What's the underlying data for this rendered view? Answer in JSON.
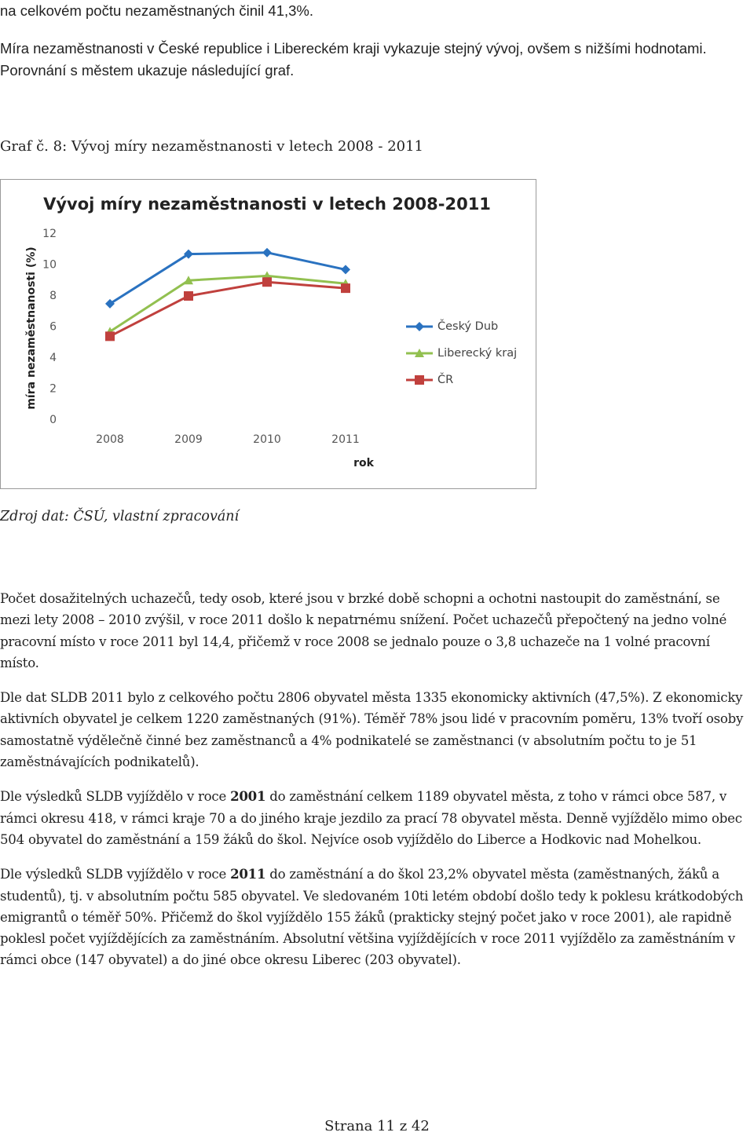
{
  "text_top": {
    "p1": "na celkovém počtu nezaměstnaných činil 41,3%.",
    "p2": "Míra nezaměstnanosti v České republice i Libereckém kraji vykazuje stejný vývoj, ovšem s nižšími hodnotami. Porovnání s městem ukazuje následující graf."
  },
  "figure_caption": "Graf č. 8: Vývoj míry nezaměstnanosti v letech 2008 - 2011",
  "chart_data": {
    "type": "line",
    "title": "Vývoj míry nezaměstnanosti v letech 2008-2011",
    "y_label": "míra nezaměstnanosti (%)",
    "x_label": "rok",
    "categories": [
      "2008",
      "2009",
      "2010",
      "2011"
    ],
    "series": [
      {
        "name": "Český Dub",
        "color": "#2a72c0",
        "marker": "diamond",
        "values": [
          7.5,
          10.7,
          10.8,
          9.7
        ]
      },
      {
        "name": "Liberecký kraj",
        "color": "#92c050",
        "marker": "triangle",
        "values": [
          5.7,
          9.0,
          9.3,
          8.8
        ]
      },
      {
        "name": "ČR",
        "color": "#c0403d",
        "marker": "square",
        "values": [
          5.4,
          8.0,
          8.9,
          8.5
        ]
      }
    ],
    "ylim": [
      0,
      12
    ],
    "yticks": [
      0,
      2,
      4,
      6,
      8,
      10,
      12
    ],
    "grid": false,
    "legend": "right"
  },
  "source": "Zdroj dat: ČSÚ, vlastní zpracování",
  "paragraphs": [
    {
      "text": "Počet dosažitelných uchazečů, tedy osob, které jsou v brzké době schopni a ochotni nastoupit do zaměstnání, se mezi lety 2008 – 2010 zvýšil, v roce 2011 došlo k nepatrnému snížení. Počet uchazečů přepočtený na jedno volné pracovní místo v roce 2011 byl 14,4, přičemž v roce 2008 se jednalo pouze o 3,8 uchazeče na 1 volné pracovní místo."
    },
    {
      "text": "Dle dat SLDB 2011 bylo z celkového počtu 2806 obyvatel města 1335 ekonomicky aktivních (47,5%). Z ekonomicky aktivních obyvatel je celkem 1220 zaměstnaných (91%). Téměř 78% jsou lidé v pracovním poměru, 13% tvoří osoby samostatně výdělečně činné bez zaměstnanců a 4% podnikatelé se zaměstnanci (v absolutním počtu to je 51 zaměstnávajících podnikatelů)."
    },
    {
      "before": "Dle výsledků SLDB vyjíždělo v roce ",
      "bold": "2001",
      "after": " do zaměstnání celkem 1189 obyvatel města, z toho v rámci obce 587, v rámci okresu 418, v rámci kraje 70 a do jiného kraje jezdilo za prací 78 obyvatel města. Denně vyjíždělo mimo obec 504 obyvatel do zaměstnání a 159 žáků do škol. Nejvíce osob vyjíždělo do Liberce a Hodkovic nad Mohelkou."
    },
    {
      "before": "Dle výsledků SLDB vyjíždělo v roce ",
      "bold": "2011",
      "after": " do zaměstnání a do škol 23,2% obyvatel města (zaměstnaných, žáků a studentů), tj. v absolutním počtu 585 obyvatel. Ve sledovaném 10ti letém období došlo tedy k poklesu krátkodobých emigrantů o téměř 50%. Přičemž do škol vyjíždělo 155 žáků (prakticky stejný počet jako v roce 2001), ale rapidně poklesl počet vyjíždějících za zaměstnáním. Absolutní většina vyjíždějících v roce 2011 vyjíždělo za zaměstnáním v rámci obce (147 obyvatel) a do jiné obce okresu Liberec (203 obyvatel)."
    }
  ],
  "footer": "Strana 11 z 42"
}
